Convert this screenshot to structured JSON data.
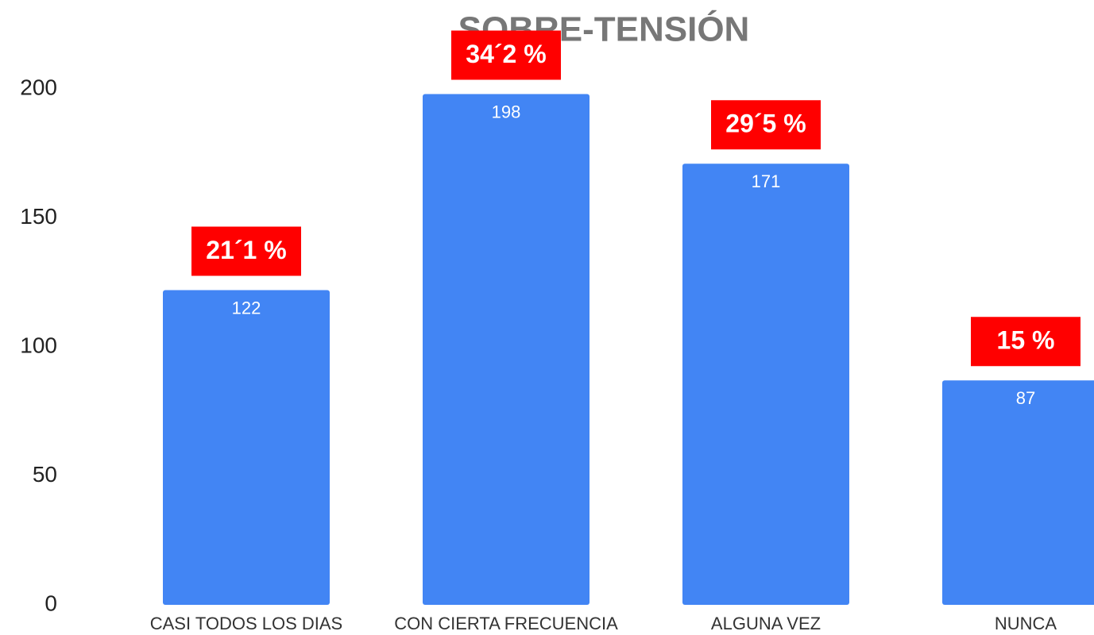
{
  "chart_data": {
    "type": "bar",
    "title": "SOBRE-TENSIÓN",
    "categories": [
      "CASI TODOS LOS DIAS",
      "CON CIERTA FRECUENCIA",
      "ALGUNA VEZ",
      "NUNCA"
    ],
    "values": [
      122,
      198,
      171,
      87
    ],
    "color": "#4285f4",
    "annotations": [
      "21´1 %",
      "34´2 %",
      "29´5 %",
      "15 %"
    ],
    "ylim": [
      0,
      200
    ],
    "yticks": [
      0,
      50,
      100,
      150,
      200
    ],
    "grid": false
  }
}
